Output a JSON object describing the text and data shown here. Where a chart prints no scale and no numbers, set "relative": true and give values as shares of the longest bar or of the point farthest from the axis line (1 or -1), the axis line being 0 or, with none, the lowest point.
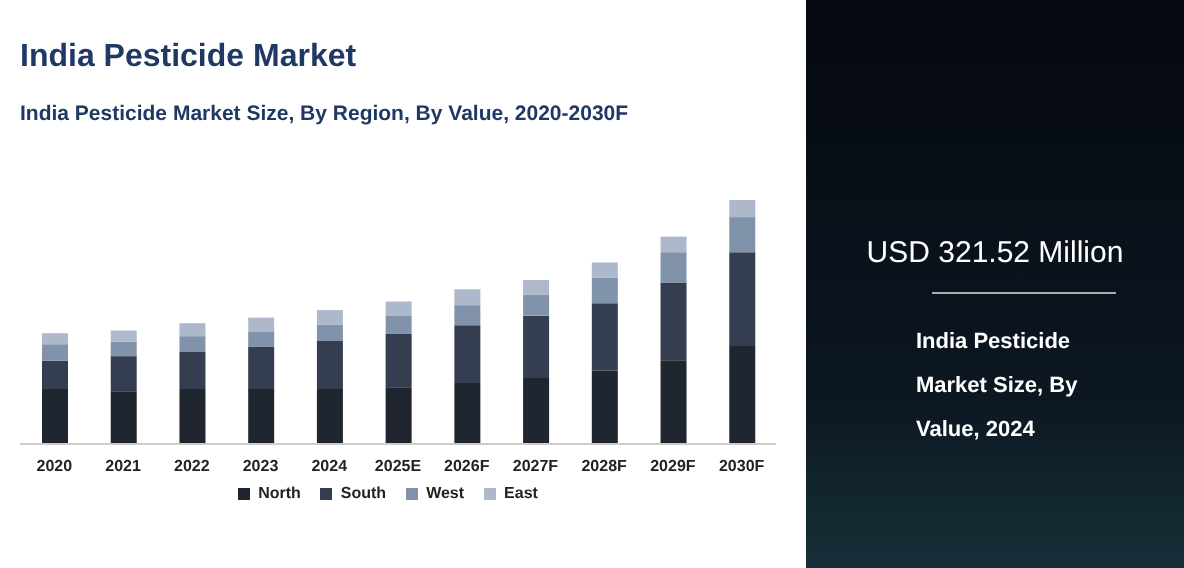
{
  "chart_data": {
    "type": "bar",
    "title": "India Pesticide Market",
    "subtitle": "India Pesticide Market Size, By Region, By Value, 2020-2030F",
    "categories": [
      "2020",
      "2021",
      "2022",
      "2023",
      "2024",
      "2025E",
      "2026F",
      "2027F",
      "2028F",
      "2029F",
      "2030F"
    ],
    "stacked": true,
    "relative": true,
    "legend": "bottom",
    "grid": false,
    "series": [
      {
        "name": "North",
        "color": "#1f2630",
        "values": [
          0.225,
          0.216,
          0.225,
          0.225,
          0.225,
          0.233,
          0.25,
          0.27,
          0.301,
          0.343,
          0.402
        ]
      },
      {
        "name": "South",
        "color": "#343e50",
        "values": [
          0.116,
          0.144,
          0.152,
          0.175,
          0.197,
          0.22,
          0.237,
          0.256,
          0.276,
          0.319,
          0.384
        ]
      },
      {
        "name": "West",
        "color": "#8193ab",
        "values": [
          0.068,
          0.059,
          0.065,
          0.059,
          0.068,
          0.074,
          0.082,
          0.087,
          0.104,
          0.124,
          0.144
        ]
      },
      {
        "name": "East",
        "color": "#adb9cb",
        "values": [
          0.045,
          0.046,
          0.053,
          0.059,
          0.059,
          0.057,
          0.065,
          0.059,
          0.063,
          0.064,
          0.07
        ]
      }
    ],
    "annotations": [
      "USD 321.52 Million",
      "India Pesticide Market Size, By Value, 2024"
    ]
  }
}
